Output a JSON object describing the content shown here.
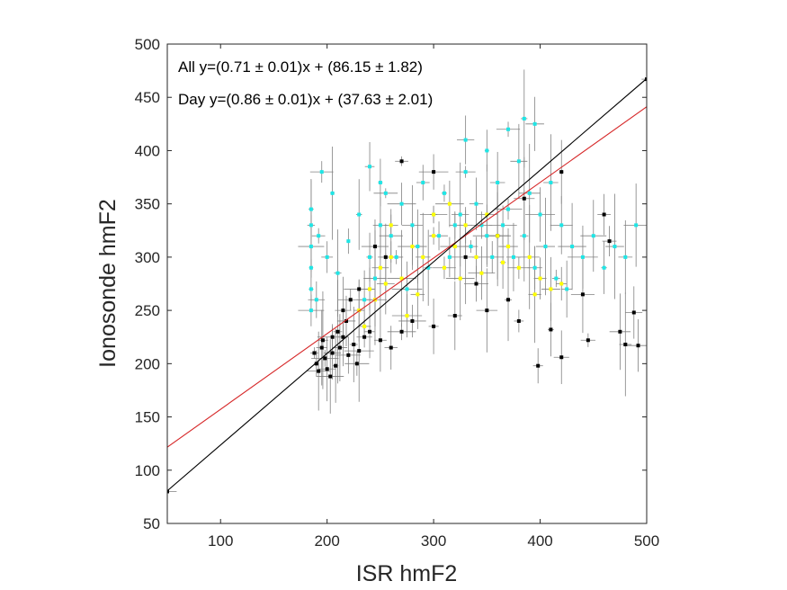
{
  "chart_data": {
    "type": "scatter",
    "xlabel": "ISR hmF2",
    "ylabel": "Ionosonde hmF2",
    "xlim": [
      50,
      500
    ],
    "ylim": [
      50,
      500
    ],
    "xticks": [
      100,
      200,
      300,
      400,
      500
    ],
    "yticks": [
      50,
      100,
      150,
      200,
      250,
      300,
      350,
      400,
      450,
      500
    ],
    "xtick_labels": [
      "100",
      "200",
      "300",
      "400",
      "500"
    ],
    "ytick_labels": [
      "50",
      "100",
      "150",
      "200",
      "250",
      "300",
      "350",
      "400",
      "450",
      "500"
    ],
    "grid": false,
    "annotations": [
      "All y=(0.71 ± 0.01)x + (86.15 ± 1.82)",
      "Day y=(0.86 ± 0.01)x + (37.63 ± 2.01)"
    ],
    "fits": [
      {
        "slope": 0.71,
        "intercept": 86.15,
        "color": "#d62728"
      },
      {
        "slope": 0.86,
        "intercept": 37.63,
        "color": "#000000"
      }
    ],
    "series_colors": {
      "black": "#000000",
      "cyan": "#1ee6e6",
      "yellow": "#ffff00",
      "errorbar": "#808080"
    },
    "series": [
      {
        "color": "#000000",
        "points": [
          [
            50,
            80
          ],
          [
            500,
            467
          ],
          [
            205,
            210
          ],
          [
            198,
            205
          ],
          [
            212,
            215
          ],
          [
            220,
            208
          ],
          [
            208,
            198
          ],
          [
            215,
            225
          ],
          [
            225,
            218
          ],
          [
            200,
            195
          ],
          [
            190,
            200
          ],
          [
            230,
            212
          ],
          [
            235,
            225
          ],
          [
            210,
            230
          ],
          [
            218,
            240
          ],
          [
            195,
            215
          ],
          [
            205,
            225
          ],
          [
            240,
            230
          ],
          [
            250,
            222
          ],
          [
            228,
            200
          ],
          [
            260,
            215
          ],
          [
            270,
            230
          ],
          [
            280,
            240
          ],
          [
            300,
            235
          ],
          [
            320,
            245
          ],
          [
            350,
            250
          ],
          [
            380,
            240
          ],
          [
            410,
            232
          ],
          [
            445,
            222
          ],
          [
            475,
            230
          ],
          [
            480,
            218
          ],
          [
            488,
            248
          ],
          [
            492,
            217
          ],
          [
            420,
            206
          ],
          [
            398,
            198
          ],
          [
            370,
            260
          ],
          [
            340,
            275
          ],
          [
            330,
            300
          ],
          [
            360,
            320
          ],
          [
            385,
            355
          ],
          [
            420,
            380
          ],
          [
            460,
            340
          ],
          [
            465,
            315
          ],
          [
            440,
            265
          ],
          [
            300,
            380
          ],
          [
            270,
            390
          ],
          [
            255,
            300
          ],
          [
            230,
            270
          ],
          [
            245,
            310
          ],
          [
            215,
            250
          ],
          [
            222,
            260
          ],
          [
            196,
            222
          ],
          [
            188,
            210
          ],
          [
            192,
            193
          ],
          [
            203,
            188
          ]
        ]
      },
      {
        "color": "#1ee6e6",
        "points": [
          [
            185,
            250
          ],
          [
            185,
            270
          ],
          [
            185,
            290
          ],
          [
            185,
            310
          ],
          [
            185,
            330
          ],
          [
            185,
            345
          ],
          [
            190,
            260
          ],
          [
            192,
            320
          ],
          [
            200,
            300
          ],
          [
            210,
            285
          ],
          [
            220,
            315
          ],
          [
            230,
            340
          ],
          [
            240,
            300
          ],
          [
            250,
            330
          ],
          [
            255,
            360
          ],
          [
            260,
            320
          ],
          [
            270,
            350
          ],
          [
            280,
            330
          ],
          [
            290,
            370
          ],
          [
            300,
            340
          ],
          [
            310,
            360
          ],
          [
            320,
            330
          ],
          [
            330,
            380
          ],
          [
            340,
            350
          ],
          [
            350,
            320
          ],
          [
            360,
            370
          ],
          [
            370,
            345
          ],
          [
            380,
            390
          ],
          [
            390,
            360
          ],
          [
            400,
            340
          ],
          [
            410,
            370
          ],
          [
            420,
            330
          ],
          [
            430,
            310
          ],
          [
            440,
            300
          ],
          [
            450,
            320
          ],
          [
            460,
            290
          ],
          [
            470,
            310
          ],
          [
            480,
            300
          ],
          [
            490,
            330
          ],
          [
            235,
            260
          ],
          [
            245,
            280
          ],
          [
            265,
            300
          ],
          [
            275,
            270
          ],
          [
            285,
            310
          ],
          [
            295,
            290
          ],
          [
            305,
            320
          ],
          [
            315,
            300
          ],
          [
            325,
            340
          ],
          [
            335,
            310
          ],
          [
            345,
            330
          ],
          [
            355,
            300
          ],
          [
            365,
            330
          ],
          [
            375,
            300
          ],
          [
            385,
            320
          ],
          [
            395,
            290
          ],
          [
            405,
            310
          ],
          [
            415,
            280
          ],
          [
            425,
            270
          ],
          [
            330,
            410
          ],
          [
            350,
            400
          ],
          [
            370,
            420
          ],
          [
            395,
            425
          ],
          [
            385,
            430
          ],
          [
            240,
            385
          ],
          [
            250,
            370
          ],
          [
            195,
            380
          ],
          [
            205,
            360
          ]
        ]
      },
      {
        "color": "#ffff00",
        "points": [
          [
            230,
            250
          ],
          [
            240,
            270
          ],
          [
            250,
            290
          ],
          [
            260,
            300
          ],
          [
            270,
            280
          ],
          [
            280,
            310
          ],
          [
            290,
            300
          ],
          [
            300,
            320
          ],
          [
            310,
            290
          ],
          [
            320,
            310
          ],
          [
            330,
            330
          ],
          [
            340,
            300
          ],
          [
            350,
            340
          ],
          [
            360,
            320
          ],
          [
            370,
            310
          ],
          [
            380,
            290
          ],
          [
            390,
            300
          ],
          [
            400,
            280
          ],
          [
            410,
            270
          ],
          [
            260,
            330
          ],
          [
            245,
            260
          ],
          [
            255,
            275
          ],
          [
            285,
            265
          ],
          [
            300,
            340
          ],
          [
            315,
            350
          ],
          [
            325,
            280
          ],
          [
            345,
            285
          ],
          [
            365,
            295
          ],
          [
            395,
            265
          ],
          [
            420,
            275
          ],
          [
            235,
            235
          ],
          [
            275,
            245
          ]
        ]
      }
    ]
  }
}
